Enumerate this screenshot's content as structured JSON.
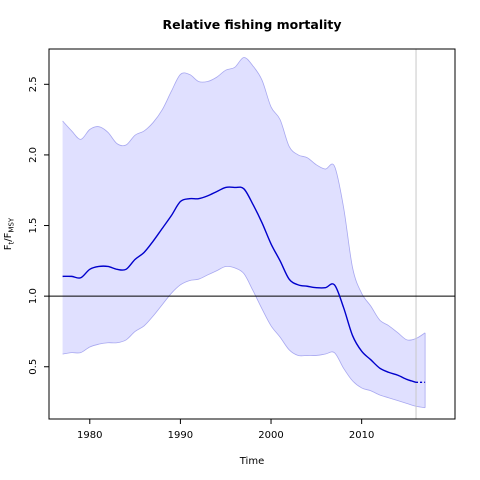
{
  "chart_data": {
    "type": "line",
    "title": "Relative fishing mortality",
    "xlabel": "Time",
    "ylabel": {
      "main": "F",
      "sub1": "t",
      "slash": "/F",
      "sub2": "MSY"
    },
    "xlim": [
      1975.5,
      2020.3
    ],
    "ylim": [
      0.13,
      2.75
    ],
    "xticks": [
      1980,
      1990,
      2000,
      2010
    ],
    "yticks": [
      0.5,
      1.0,
      1.5,
      2.0,
      2.5
    ],
    "ytick_labels": [
      "0.5",
      "1.0",
      "1.5",
      "2.0",
      "2.5"
    ],
    "reference_line_y": 1.0,
    "vertical_line_x": 2016,
    "series": [
      {
        "role": "estimate",
        "x": [
          1977,
          1978,
          1979,
          1980,
          1981,
          1982,
          1983,
          1984,
          1985,
          1986,
          1987,
          1988,
          1989,
          1990,
          1991,
          1992,
          1993,
          1994,
          1995,
          1996,
          1997,
          1998,
          1999,
          2000,
          2001,
          2002,
          2003,
          2004,
          2005,
          2006,
          2007,
          2008,
          2009,
          2010,
          2011,
          2012,
          2013,
          2014,
          2015,
          2016
        ],
        "y": [
          1.14,
          1.14,
          1.13,
          1.19,
          1.21,
          1.21,
          1.19,
          1.19,
          1.26,
          1.31,
          1.39,
          1.48,
          1.57,
          1.67,
          1.69,
          1.69,
          1.71,
          1.74,
          1.77,
          1.77,
          1.76,
          1.65,
          1.52,
          1.37,
          1.25,
          1.12,
          1.08,
          1.07,
          1.06,
          1.06,
          1.08,
          0.92,
          0.72,
          0.61,
          0.55,
          0.49,
          0.46,
          0.44,
          0.41,
          0.39
        ],
        "color": "#0000cc"
      },
      {
        "role": "forecast",
        "x": [
          2016,
          2017
        ],
        "y": [
          0.39,
          0.39
        ],
        "color": "#0000cc",
        "dashed": true
      }
    ],
    "confidence_band": {
      "x": [
        1977,
        1978,
        1979,
        1980,
        1981,
        1982,
        1983,
        1984,
        1985,
        1986,
        1987,
        1988,
        1989,
        1990,
        1991,
        1992,
        1993,
        1994,
        1995,
        1996,
        1997,
        1998,
        1999,
        2000,
        2001,
        2002,
        2003,
        2004,
        2005,
        2006,
        2007,
        2008,
        2009,
        2010,
        2011,
        2012,
        2013,
        2014,
        2015,
        2016,
        2017
      ],
      "upper": [
        2.24,
        2.17,
        2.11,
        2.18,
        2.2,
        2.16,
        2.08,
        2.07,
        2.14,
        2.17,
        2.23,
        2.32,
        2.45,
        2.57,
        2.57,
        2.52,
        2.52,
        2.55,
        2.6,
        2.62,
        2.69,
        2.63,
        2.53,
        2.34,
        2.25,
        2.06,
        2.0,
        1.98,
        1.93,
        1.9,
        1.92,
        1.63,
        1.2,
        1.02,
        0.93,
        0.83,
        0.79,
        0.74,
        0.69,
        0.7,
        0.74
      ],
      "lower": [
        0.59,
        0.6,
        0.6,
        0.64,
        0.66,
        0.67,
        0.67,
        0.69,
        0.75,
        0.79,
        0.86,
        0.94,
        1.02,
        1.08,
        1.11,
        1.12,
        1.15,
        1.18,
        1.21,
        1.2,
        1.16,
        1.04,
        0.91,
        0.79,
        0.71,
        0.62,
        0.58,
        0.58,
        0.58,
        0.59,
        0.6,
        0.49,
        0.4,
        0.35,
        0.33,
        0.3,
        0.28,
        0.26,
        0.24,
        0.22,
        0.21
      ],
      "fill": "#e0e0ff",
      "stroke": "#a8a8f0"
    }
  }
}
